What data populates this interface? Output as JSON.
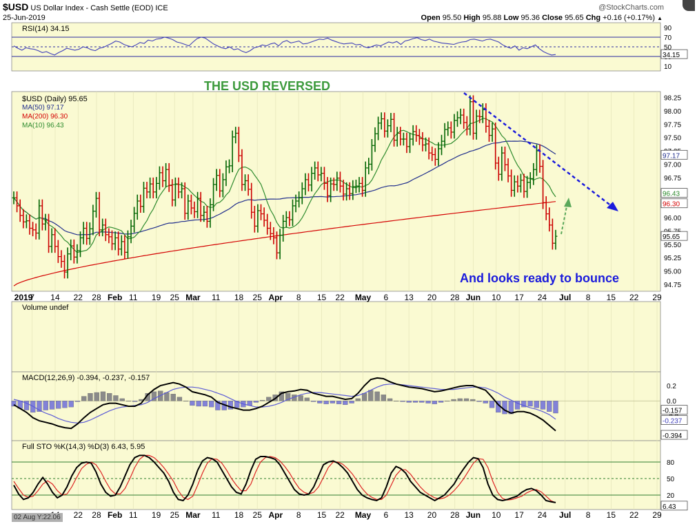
{
  "header": {
    "symbol": "$USD",
    "title": "US Dollar Index - Cash Settle (EOD)",
    "exchange": "ICE",
    "date": "25-Jun-2019",
    "copyright": "@StockCharts.com",
    "open_label": "Open",
    "open": "95.50",
    "high_label": "High",
    "high": "95.88",
    "low_label": "Low",
    "low": "95.36",
    "close_label": "Close",
    "close": "95.65",
    "chg_label": "Chg",
    "chg": "+0.16 (+0.17%)"
  },
  "colors": {
    "panel_bg": "#fafad2",
    "price_up": "#006400",
    "price_down": "#cc0000",
    "ma50": "#1f2d8c",
    "ma200": "#d40000",
    "ma10": "#2e8b2e",
    "annotation_green": "#3c9a3c",
    "annotation_blue": "#1a1adc",
    "volume_badge": "#808080"
  },
  "chart_data": [
    {
      "type": "line",
      "panel": "rsi",
      "title": "RSI(14) 34.15",
      "y_ticks": [
        "90",
        "70",
        "50",
        "30",
        "10"
      ],
      "ylim": [
        0,
        100
      ],
      "reference_lines": [
        70,
        50,
        30
      ],
      "current_value_label": "34.15",
      "series": [
        {
          "values": [
            52,
            47,
            43,
            48,
            46,
            45,
            42,
            38,
            40,
            36,
            33,
            38,
            42,
            47,
            45,
            43,
            45,
            50,
            48,
            44,
            42,
            47,
            49,
            53,
            57,
            62,
            60,
            55,
            52,
            50,
            54,
            59,
            57,
            64,
            62,
            66,
            67,
            70,
            68,
            65,
            60,
            58,
            55,
            52,
            60,
            67,
            70,
            68,
            62,
            56,
            52,
            48,
            46,
            50,
            44,
            46,
            41,
            38,
            42,
            48,
            50,
            54,
            52,
            56,
            58,
            52,
            60,
            63,
            58,
            60,
            62,
            56,
            57,
            60,
            63,
            66,
            65,
            68,
            64,
            61,
            58,
            56,
            57,
            58,
            54,
            55,
            50,
            48,
            51,
            54,
            52,
            56,
            60,
            58,
            61,
            55,
            62,
            64,
            67,
            69,
            65,
            63,
            66,
            62,
            60,
            58,
            57,
            56,
            55,
            58,
            60,
            61,
            65,
            66,
            64,
            62,
            65,
            66,
            63,
            60,
            54,
            50,
            47,
            52,
            43,
            48,
            46,
            50,
            54,
            46,
            40,
            36,
            33,
            34
          ]
        }
      ]
    },
    {
      "type": "bar",
      "panel": "price",
      "title": "THE USD REVERSED",
      "y_ticks": [
        "98.25",
        "98.00",
        "97.75",
        "97.50",
        "97.25",
        "97.00",
        "96.75",
        "96.50",
        "96.25",
        "96.00",
        "95.75",
        "95.50",
        "95.25",
        "95.00",
        "94.75"
      ],
      "ylim": [
        94.62,
        98.36
      ],
      "x_ticks": [
        "2019",
        "7",
        "14",
        "22",
        "28",
        "Feb",
        "11",
        "19",
        "25",
        "Mar",
        "11",
        "18",
        "25",
        "Apr",
        "8",
        "15",
        "22",
        "May",
        "6",
        "13",
        "20",
        "28",
        "Jun",
        "10",
        "17",
        "24",
        "Jul",
        "8",
        "15",
        "22",
        "29"
      ],
      "legend": [
        {
          "name": "$USD (Daily) 95.65",
          "color": "#000000"
        },
        {
          "name": "MA(50) 97.17",
          "color": "#1f2d8c"
        },
        {
          "name": "MA(200) 96.30",
          "color": "#d40000"
        },
        {
          "name": "MA(10) 96.43",
          "color": "#2e8b2e"
        }
      ],
      "axis_value_labels": [
        "97.17",
        "96.43",
        "96.30",
        "95.65"
      ],
      "annotations": [
        "THE USD REVERSED",
        "And looks ready to bounce"
      ],
      "close": [
        96.37,
        96.22,
        96.04,
        95.92,
        95.94,
        95.8,
        95.77,
        95.71,
        96.22,
        95.88,
        95.95,
        95.46,
        95.68,
        95.46,
        95.27,
        95.18,
        94.98,
        95.32,
        95.47,
        95.26,
        95.38,
        95.62,
        95.8,
        95.61,
        95.79,
        96.12,
        96.36,
        95.77,
        95.86,
        95.68,
        95.64,
        95.51,
        95.62,
        95.41,
        95.55,
        95.35,
        95.64,
        95.84,
        96.08,
        96.31,
        96.21,
        96.55,
        96.48,
        96.63,
        96.48,
        96.64,
        96.84,
        96.69,
        96.9,
        96.6,
        96.33,
        96.63,
        96.48,
        96.54,
        96.08,
        96.31,
        96.18,
        96.11,
        96.36,
        96.04,
        96.1,
        95.93,
        96.24,
        96.62,
        96.79,
        96.5,
        96.71,
        96.95,
        96.97,
        97.51,
        97.58,
        97.16,
        96.62,
        96.69,
        96.53,
        96.1,
        95.84,
        96.13,
        96.07,
        95.95,
        95.8,
        95.7,
        95.62,
        95.34,
        95.67,
        95.93,
        96.0,
        95.96,
        96.22,
        96.31,
        96.37,
        96.54,
        96.71,
        96.61,
        96.83,
        96.93,
        96.8,
        96.83,
        96.64,
        96.41,
        96.63,
        96.62,
        96.74,
        96.59,
        96.44,
        96.54,
        96.45,
        96.58,
        96.59,
        96.64,
        96.51,
        96.93,
        97.0,
        97.35,
        97.57,
        97.77,
        97.85,
        97.62,
        97.72,
        97.84,
        97.45,
        97.58,
        97.47,
        97.47,
        97.33,
        97.47,
        97.61,
        97.54,
        97.48,
        97.36,
        97.38,
        97.21,
        97.18,
        97.09,
        97.29,
        97.43,
        97.65,
        97.68,
        97.6,
        97.82,
        97.87,
        97.92,
        97.78,
        97.66,
        98.17,
        97.58,
        97.9,
        97.89,
        98.02,
        97.71,
        97.54,
        97.66,
        97.02,
        96.81,
        97.21,
        96.99,
        96.78,
        96.51,
        96.67,
        96.59,
        96.7,
        96.49,
        96.66,
        96.73,
        96.9,
        97.25,
        96.96,
        96.28,
        96.07,
        95.86,
        95.52,
        95.65
      ]
    },
    {
      "type": "bar",
      "panel": "volume",
      "title": "Volume undef",
      "values": []
    },
    {
      "type": "line",
      "panel": "macd",
      "title": "MACD(12,26,9) -0.394, -0.237, -0.157",
      "y_ticks": [
        "0.2",
        "0.0",
        "-0.2"
      ],
      "ylim": [
        -0.52,
        0.38
      ],
      "value_labels": [
        "-0.157",
        "-0.237",
        "-0.394"
      ],
      "series": [
        {
          "name": "MACD",
          "color": "#000000",
          "values": [
            -0.05,
            -0.1,
            -0.15,
            -0.22,
            -0.26,
            -0.28,
            -0.3,
            -0.33,
            -0.35,
            -0.36,
            -0.3,
            -0.22,
            -0.15,
            -0.1,
            -0.05,
            -0.03,
            -0.03,
            -0.05,
            -0.07,
            -0.07,
            -0.03,
            0.08,
            0.15,
            0.2,
            0.22,
            0.24,
            0.22,
            0.18,
            0.12,
            0.1,
            0.08,
            0.05,
            -0.02,
            -0.05,
            -0.08,
            -0.1,
            -0.12,
            -0.12,
            -0.1,
            -0.07,
            -0.02,
            0.03,
            0.1,
            0.12,
            0.13,
            0.15,
            0.14,
            0.1,
            0.08,
            0.06,
            0.06,
            0.04,
            0.02,
            0.03,
            0.1,
            0.2,
            0.28,
            0.3,
            0.29,
            0.25,
            0.22,
            0.2,
            0.18,
            0.17,
            0.16,
            0.14,
            0.12,
            0.13,
            0.15,
            0.17,
            0.19,
            0.2,
            0.2,
            0.17,
            0.14,
            0.05,
            -0.05,
            -0.12,
            -0.16,
            -0.14,
            -0.14,
            -0.16,
            -0.2,
            -0.25,
            -0.32,
            -0.39
          ]
        },
        {
          "name": "Signal",
          "color": "#5b5bd6",
          "values": [
            0.02,
            0.0,
            -0.03,
            -0.07,
            -0.12,
            -0.16,
            -0.19,
            -0.23,
            -0.26,
            -0.28,
            -0.29,
            -0.28,
            -0.25,
            -0.21,
            -0.17,
            -0.13,
            -0.1,
            -0.08,
            -0.07,
            -0.06,
            -0.05,
            -0.02,
            0.03,
            0.07,
            0.11,
            0.15,
            0.17,
            0.18,
            0.18,
            0.17,
            0.15,
            0.13,
            0.1,
            0.07,
            0.03,
            -0.01,
            -0.04,
            -0.06,
            -0.08,
            -0.08,
            -0.07,
            -0.05,
            -0.02,
            0.02,
            0.05,
            0.08,
            0.1,
            0.11,
            0.11,
            0.1,
            0.09,
            0.08,
            0.07,
            0.06,
            0.07,
            0.1,
            0.14,
            0.18,
            0.21,
            0.22,
            0.22,
            0.21,
            0.2,
            0.19,
            0.18,
            0.17,
            0.16,
            0.15,
            0.15,
            0.15,
            0.16,
            0.17,
            0.18,
            0.18,
            0.17,
            0.14,
            0.1,
            0.05,
            0.01,
            -0.03,
            -0.06,
            -0.09,
            -0.11,
            -0.14,
            -0.18,
            -0.24
          ]
        },
        {
          "name": "Histogram",
          "color": "#7b7bd6",
          "values": [
            -0.07,
            -0.1,
            -0.12,
            -0.15,
            -0.14,
            -0.12,
            -0.11,
            -0.1,
            -0.09,
            -0.08,
            -0.01,
            0.06,
            0.1,
            0.11,
            0.12,
            0.1,
            0.07,
            0.03,
            0.0,
            -0.01,
            0.02,
            0.1,
            0.12,
            0.13,
            0.11,
            0.09,
            0.05,
            0.0,
            -0.06,
            -0.07,
            -0.07,
            -0.08,
            -0.12,
            -0.12,
            -0.11,
            -0.09,
            -0.08,
            -0.06,
            -0.02,
            0.01,
            0.05,
            0.08,
            0.12,
            0.1,
            0.08,
            0.07,
            0.04,
            -0.01,
            -0.03,
            -0.04,
            -0.03,
            -0.04,
            -0.05,
            -0.03,
            0.03,
            0.1,
            0.14,
            0.12,
            0.08,
            0.03,
            0.0,
            -0.01,
            -0.02,
            -0.02,
            -0.02,
            -0.03,
            -0.04,
            -0.02,
            0.0,
            0.02,
            0.03,
            0.03,
            0.02,
            -0.01,
            -0.03,
            -0.09,
            -0.15,
            -0.17,
            -0.17,
            -0.11,
            -0.08,
            -0.07,
            -0.09,
            -0.11,
            -0.14,
            -0.16
          ]
        }
      ]
    },
    {
      "type": "line",
      "panel": "stochastic",
      "title": "Full STO %K(14,3) %D(3) 6.43, 5.95",
      "y_ticks": [
        "80",
        "50",
        "20"
      ],
      "ylim": [
        0,
        100
      ],
      "reference_lines": [
        80,
        50,
        20
      ],
      "value_labels": [
        "6.43"
      ],
      "series": [
        {
          "name": "%K",
          "color": "#000000",
          "values": [
            38,
            22,
            12,
            15,
            25,
            40,
            52,
            40,
            25,
            15,
            20,
            35,
            55,
            70,
            78,
            80,
            78,
            62,
            40,
            25,
            18,
            20,
            35,
            55,
            75,
            88,
            92,
            92,
            88,
            80,
            70,
            60,
            45,
            25,
            12,
            10,
            20,
            40,
            65,
            82,
            88,
            86,
            80,
            65,
            50,
            35,
            25,
            22,
            40,
            65,
            85,
            90,
            90,
            88,
            85,
            75,
            60,
            45,
            30,
            22,
            20,
            22,
            35,
            55,
            75,
            80,
            82,
            78,
            70,
            60,
            45,
            30,
            20,
            15,
            12,
            10,
            15,
            35,
            60,
            72,
            68,
            60,
            45,
            35,
            25,
            20,
            15,
            10,
            15,
            20,
            30,
            40,
            55,
            68,
            80,
            88,
            86,
            70,
            40,
            20,
            12,
            10,
            12,
            15,
            18,
            25,
            30,
            32,
            28,
            20,
            10,
            8,
            6.43
          ]
        },
        {
          "name": "%D",
          "color": "#dd2222",
          "values": [
            45,
            32,
            20,
            16,
            18,
            28,
            40,
            46,
            40,
            28,
            20,
            22,
            35,
            52,
            68,
            76,
            80,
            75,
            62,
            45,
            30,
            22,
            22,
            32,
            50,
            70,
            85,
            92,
            92,
            88,
            80,
            70,
            58,
            45,
            28,
            16,
            12,
            18,
            38,
            60,
            78,
            86,
            85,
            78,
            65,
            50,
            38,
            28,
            28,
            40,
            62,
            80,
            88,
            90,
            88,
            82,
            72,
            60,
            45,
            32,
            25,
            22,
            25,
            35,
            52,
            70,
            80,
            80,
            76,
            68,
            58,
            45,
            32,
            22,
            16,
            12,
            12,
            20,
            38,
            56,
            66,
            66,
            58,
            46,
            35,
            26,
            20,
            15,
            13,
            15,
            20,
            28,
            38,
            50,
            64,
            78,
            86,
            85,
            70,
            45,
            25,
            14,
            11,
            12,
            15,
            18,
            24,
            28,
            30,
            26,
            18,
            10,
            5.95
          ]
        }
      ]
    }
  ],
  "bottom_badge": "02 Aug Y:22.06"
}
